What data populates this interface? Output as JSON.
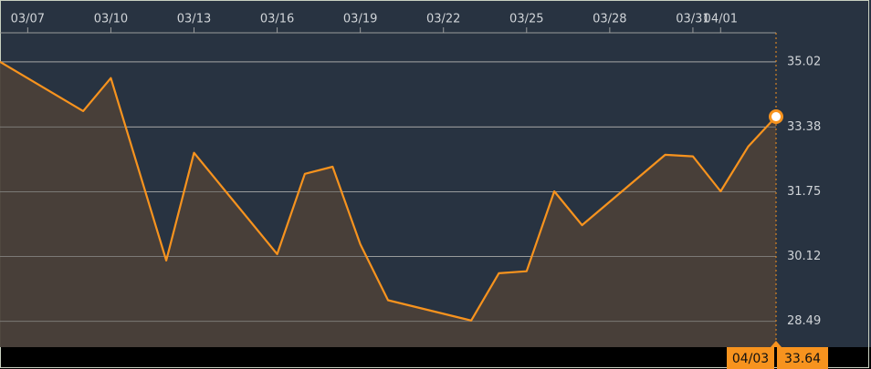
{
  "chart_data": {
    "type": "area",
    "x": [
      "03/06",
      "03/09",
      "03/10",
      "03/12",
      "03/13",
      "03/16",
      "03/17",
      "03/18",
      "03/19",
      "03/20",
      "03/23",
      "03/24",
      "03/25",
      "03/26",
      "03/27",
      "03/30",
      "03/31",
      "04/01",
      "04/02",
      "04/03"
    ],
    "values": [
      35.02,
      33.78,
      34.61,
      30.02,
      32.73,
      30.18,
      32.2,
      32.38,
      30.43,
      29.02,
      28.51,
      29.7,
      29.75,
      31.76,
      30.91,
      32.68,
      32.64,
      31.76,
      32.89,
      33.64
    ],
    "color": "#f7931e",
    "fill": "#4a4039",
    "xlim": [
      "03/06",
      "04/03"
    ],
    "xticks": [
      "03/07",
      "03/10",
      "03/13",
      "03/16",
      "03/19",
      "03/22",
      "03/25",
      "03/28",
      "03/31",
      "04/01"
    ],
    "ylim": [
      27.84,
      35.75
    ],
    "yticks": [
      {
        "value": 28.49,
        "label": "28.49"
      },
      {
        "value": 30.12,
        "label": "30.12"
      },
      {
        "value": 31.75,
        "label": "31.75"
      },
      {
        "value": 33.38,
        "label": "33.38"
      },
      {
        "value": 35.02,
        "label": "35.02"
      }
    ],
    "grid": true
  }
}
